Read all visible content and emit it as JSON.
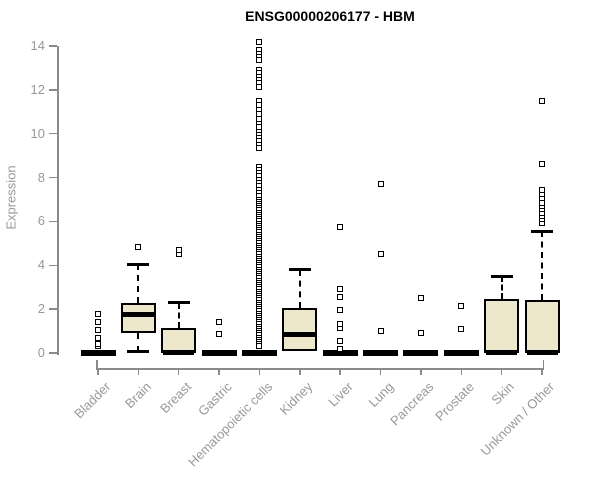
{
  "chart_data": {
    "type": "boxplot",
    "title": "ENSG00000206177 - HBM",
    "xlabel": "",
    "ylabel": "Expression",
    "ylim": [
      0,
      14
    ],
    "yticks": [
      0,
      2,
      4,
      6,
      8,
      10,
      12,
      14
    ],
    "grid": false,
    "legend": "none",
    "x_label_rotation": 45,
    "categories": [
      "Bladder",
      "Brain",
      "Breast",
      "Gastric",
      "Hematopoietic cells",
      "Kidney",
      "Liver",
      "Lung",
      "Pancreas",
      "Prostate",
      "Skin",
      "Unknown / Other"
    ],
    "series": [
      {
        "category": "Bladder",
        "low": 0,
        "q1": 0,
        "median": 0,
        "q3": 0,
        "high": 0,
        "outliers": [
          0.3,
          0.4,
          0.7,
          1.05,
          1.4,
          1.8
        ]
      },
      {
        "category": "Brain",
        "low": 0.05,
        "q1": 0.9,
        "median": 1.75,
        "q3": 2.3,
        "high": 4.05,
        "outliers": [
          4.85
        ]
      },
      {
        "category": "Breast",
        "low": 0,
        "q1": 0,
        "median": 0.03,
        "q3": 1.15,
        "high": 2.3,
        "outliers": [
          4.5,
          4.7
        ]
      },
      {
        "category": "Gastric",
        "low": 0,
        "q1": 0,
        "median": 0,
        "q3": 0,
        "high": 0,
        "outliers": [
          0.85,
          1.4
        ]
      },
      {
        "category": "Hematopoietic cells",
        "low": 0,
        "q1": 0,
        "median": 0,
        "q3": 0,
        "high": 0,
        "outliers": [
          14.2,
          13.8,
          13.65,
          13.5,
          13.35,
          12.9,
          12.75,
          12.6,
          12.45,
          12.3,
          12.15,
          11.5,
          11.3,
          11.1,
          10.9,
          10.65,
          10.45,
          10.3,
          10.1,
          9.95,
          9.8,
          9.65,
          9.5,
          9.35,
          8.5,
          8.35,
          8.2,
          8.05,
          7.9,
          7.75,
          7.6,
          7.45,
          7.3,
          7.15,
          7.0,
          6.9,
          6.8,
          6.7,
          6.6,
          6.5,
          6.4,
          6.3,
          6.2,
          6.1,
          6.0,
          5.9,
          5.8,
          5.7,
          5.6,
          5.5,
          5.4,
          5.3,
          5.2,
          5.1,
          5.0,
          4.9,
          4.8,
          4.7,
          4.6,
          4.5,
          4.4,
          4.3,
          4.2,
          4.1,
          4.0,
          3.9,
          3.8,
          3.7,
          3.6,
          3.5,
          3.4,
          3.3,
          3.2,
          3.1,
          3.0,
          2.9,
          2.8,
          2.7,
          2.6,
          2.5,
          2.4,
          2.3,
          2.2,
          2.1,
          2.0,
          1.9,
          1.8,
          1.7,
          1.6,
          1.5,
          1.4,
          1.3,
          1.2,
          1.1,
          1.0,
          0.9,
          0.8,
          0.7,
          0.6,
          0.5,
          0.4,
          0.3
        ]
      },
      {
        "category": "Kidney",
        "low": 0,
        "q1": 0.1,
        "median": 0.85,
        "q3": 2.05,
        "high": 3.8,
        "outliers": []
      },
      {
        "category": "Liver",
        "low": 0,
        "q1": 0,
        "median": 0,
        "q3": 0,
        "high": 0,
        "outliers": [
          0.2,
          0.55,
          1.15,
          1.3,
          1.95,
          2.55,
          2.9,
          5.75
        ]
      },
      {
        "category": "Lung",
        "low": 0,
        "q1": 0,
        "median": 0,
        "q3": 0,
        "high": 0,
        "outliers": [
          1.0,
          4.5,
          7.7
        ]
      },
      {
        "category": "Pancreas",
        "low": 0,
        "q1": 0,
        "median": 0,
        "q3": 0,
        "high": 0,
        "outliers": [
          0.9,
          2.5
        ]
      },
      {
        "category": "Prostate",
        "low": 0,
        "q1": 0,
        "median": 0,
        "q3": 0,
        "high": 0,
        "outliers": [
          1.1,
          2.15
        ]
      },
      {
        "category": "Skin",
        "low": 0,
        "q1": 0,
        "median": 0.03,
        "q3": 2.45,
        "high": 3.5,
        "outliers": []
      },
      {
        "category": "Unknown / Other",
        "low": 0,
        "q1": 0,
        "median": 0.03,
        "q3": 2.4,
        "high": 5.55,
        "outliers": [
          5.95,
          6.1,
          6.25,
          6.4,
          6.55,
          6.7,
          6.85,
          7.05,
          7.25,
          7.45,
          8.6,
          11.5
        ]
      }
    ],
    "colors": {
      "box_fill": "#EDE8CB",
      "box_border": "#000000",
      "median": "#000000",
      "axis": "#8a8a8a",
      "tick_label": "#999999",
      "title": "#000000",
      "background": "#ffffff"
    }
  }
}
